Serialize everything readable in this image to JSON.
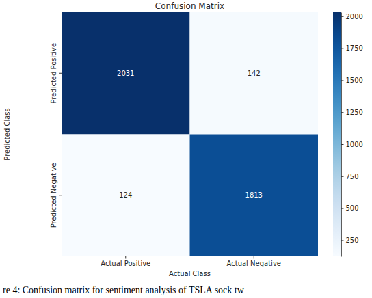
{
  "chart_data": {
    "type": "heatmap",
    "title": "Confusion Matrix",
    "x_label": "Actual Class",
    "y_label": "Predicted Class",
    "categories": [
      "Actual Positive",
      "Actual Negative"
    ],
    "y_categories": [
      "Predicted Positive",
      "Predicted Negative"
    ],
    "cells": [
      [
        2031,
        142
      ],
      [
        124,
        1813
      ]
    ],
    "colorbar": {
      "range": [
        124,
        2031
      ],
      "ticks": [
        250,
        500,
        750,
        1000,
        1250,
        1500,
        1750,
        2000
      ]
    },
    "data_labels": true,
    "caption": "re 4: Confusion matrix for sentiment analysis of TSLA sock tw"
  }
}
